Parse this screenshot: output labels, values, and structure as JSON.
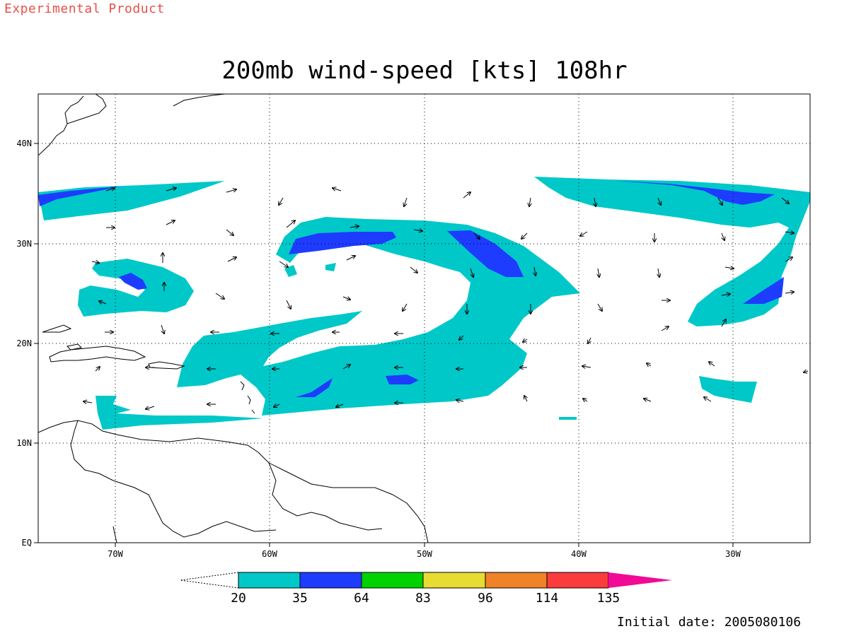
{
  "header": {
    "experimental": "Experimental Product",
    "title": "200mb wind-speed [kts] 108hr",
    "initial_date": "Initial date: 2005080106"
  },
  "map": {
    "lon_ticks": [
      "70W",
      "60W",
      "50W",
      "40W",
      "30W"
    ],
    "lat_ticks": [
      "40N",
      "30N",
      "20N",
      "10N",
      "EQ"
    ],
    "grid": "dotted"
  },
  "colorbar": {
    "levels": [
      "20",
      "35",
      "64",
      "83",
      "96",
      "114",
      "135"
    ],
    "colors": [
      "#00c8c8",
      "#1e3cff",
      "#00d200",
      "#e6dc32",
      "#f08228",
      "#fa3c3c",
      "#f00a96"
    ]
  },
  "chart_data": {
    "type": "heatmap",
    "title": "200mb wind-speed [kts] 108hr",
    "variable": "200mb wind-speed",
    "units": "kts",
    "forecast_hour": "108hr",
    "initial_date": "2005080106",
    "lon_range": [
      -75,
      -25
    ],
    "lat_range": [
      0,
      45
    ],
    "contour_levels": [
      20,
      35,
      64,
      83,
      96,
      114,
      135
    ],
    "level_colors": [
      "#00c8c8",
      "#1e3cff",
      "#00d200",
      "#e6dc32",
      "#f08228",
      "#fa3c3c",
      "#f00a96"
    ]
  }
}
